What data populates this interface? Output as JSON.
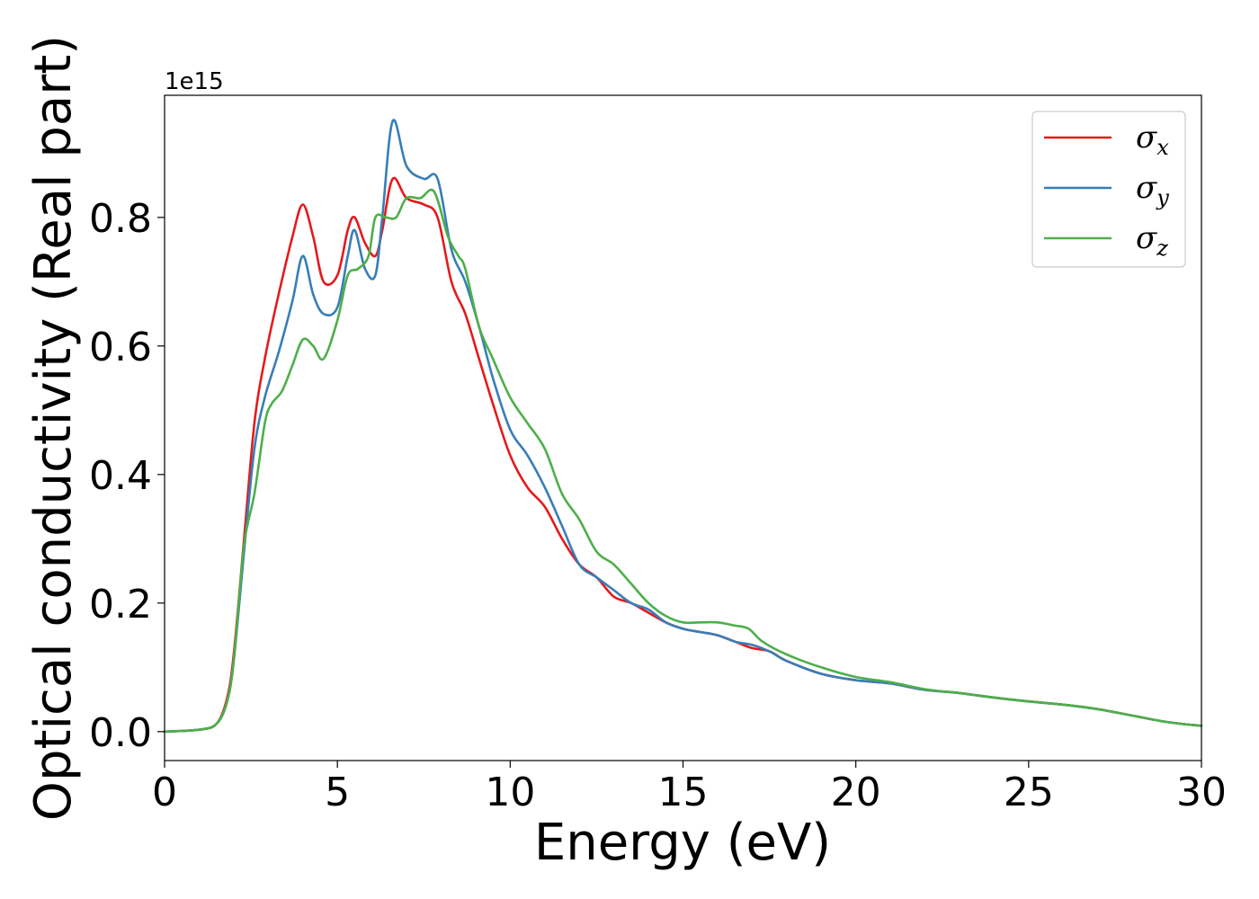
{
  "chart_data": {
    "type": "line",
    "xlabel": "Energy (eV)",
    "ylabel": "Optical conductivity (Real part)",
    "y_offset_text": "1e15",
    "xlim": [
      0,
      30
    ],
    "ylim": [
      -0.045,
      0.99
    ],
    "xticks": [
      0,
      5,
      10,
      15,
      20,
      25,
      30
    ],
    "xtick_labels": [
      "0",
      "5",
      "10",
      "15",
      "20",
      "25",
      "30"
    ],
    "yticks": [
      0.0,
      0.2,
      0.4,
      0.6,
      0.8
    ],
    "ytick_labels": [
      "0.0",
      "0.2",
      "0.4",
      "0.6",
      "0.8"
    ],
    "grid": false,
    "legend_position": "top-right",
    "series": [
      {
        "name": "σx",
        "symbol": "σ",
        "subscript": "x",
        "color": "#e41a1c",
        "x": [
          0,
          1,
          1.5,
          1.8,
          2.0,
          2.3,
          2.6,
          2.9,
          3.3,
          3.7,
          4.0,
          4.3,
          4.6,
          5.0,
          5.3,
          5.5,
          5.8,
          6.1,
          6.3,
          6.6,
          7.0,
          7.5,
          7.9,
          8.3,
          8.7,
          9.1,
          9.5,
          10.0,
          10.5,
          11.0,
          11.5,
          12.0,
          12.5,
          13.0,
          13.5,
          14.0,
          14.5,
          15.0,
          15.5,
          16.0,
          16.5,
          17.0,
          17.5,
          18.0,
          19.0,
          20.0,
          21.0,
          22.0,
          23.0,
          24.0,
          25.0,
          26.0,
          27.0,
          28.0,
          29.0,
          30.0
        ],
        "y": [
          0.0,
          0.003,
          0.012,
          0.05,
          0.12,
          0.3,
          0.48,
          0.58,
          0.68,
          0.77,
          0.82,
          0.77,
          0.7,
          0.71,
          0.78,
          0.8,
          0.76,
          0.74,
          0.78,
          0.86,
          0.83,
          0.82,
          0.8,
          0.7,
          0.65,
          0.58,
          0.51,
          0.43,
          0.38,
          0.35,
          0.3,
          0.26,
          0.24,
          0.21,
          0.2,
          0.185,
          0.17,
          0.16,
          0.155,
          0.15,
          0.14,
          0.13,
          0.125,
          0.11,
          0.09,
          0.08,
          0.075,
          0.065,
          0.06,
          0.053,
          0.047,
          0.042,
          0.035,
          0.025,
          0.015,
          0.009
        ]
      },
      {
        "name": "σy",
        "symbol": "σ",
        "subscript": "y",
        "color": "#377eb8",
        "x": [
          0,
          1,
          1.5,
          1.8,
          2.0,
          2.3,
          2.6,
          2.9,
          3.3,
          3.7,
          4.0,
          4.3,
          4.6,
          5.0,
          5.3,
          5.5,
          5.8,
          6.1,
          6.3,
          6.6,
          7.0,
          7.5,
          7.9,
          8.3,
          8.7,
          9.1,
          9.5,
          10.0,
          10.5,
          11.0,
          11.5,
          12.0,
          12.5,
          13.0,
          13.5,
          14.0,
          14.5,
          15.0,
          15.5,
          16.0,
          16.5,
          17.0,
          17.5,
          18.0,
          19.0,
          20.0,
          21.0,
          22.0,
          23.0,
          24.0,
          25.0,
          26.0,
          27.0,
          28.0,
          29.0,
          30.0
        ],
        "y": [
          0.0,
          0.003,
          0.012,
          0.045,
          0.11,
          0.28,
          0.44,
          0.52,
          0.59,
          0.67,
          0.74,
          0.68,
          0.65,
          0.66,
          0.74,
          0.78,
          0.72,
          0.71,
          0.8,
          0.95,
          0.88,
          0.86,
          0.86,
          0.75,
          0.7,
          0.63,
          0.55,
          0.47,
          0.43,
          0.38,
          0.32,
          0.26,
          0.24,
          0.22,
          0.2,
          0.19,
          0.17,
          0.16,
          0.155,
          0.15,
          0.14,
          0.135,
          0.125,
          0.11,
          0.09,
          0.08,
          0.075,
          0.065,
          0.06,
          0.053,
          0.047,
          0.042,
          0.035,
          0.025,
          0.015,
          0.009
        ]
      },
      {
        "name": "σz",
        "symbol": "σ",
        "subscript": "z",
        "color": "#4daf4a",
        "x": [
          0,
          1,
          1.5,
          1.8,
          2.0,
          2.3,
          2.6,
          2.9,
          3.1,
          3.4,
          3.7,
          4.0,
          4.3,
          4.6,
          5.0,
          5.3,
          5.6,
          5.9,
          6.1,
          6.4,
          6.7,
          7.0,
          7.4,
          7.8,
          8.2,
          8.5,
          8.7,
          9.1,
          9.5,
          10.0,
          10.5,
          11.0,
          11.5,
          12.0,
          12.5,
          13.0,
          13.5,
          14.0,
          14.5,
          15.0,
          15.5,
          16.0,
          16.5,
          16.9,
          17.3,
          18.0,
          19.0,
          20.0,
          21.0,
          22.0,
          23.0,
          24.0,
          25.0,
          26.0,
          27.0,
          28.0,
          29.0,
          30.0
        ],
        "y": [
          0.0,
          0.003,
          0.012,
          0.045,
          0.11,
          0.29,
          0.37,
          0.48,
          0.51,
          0.53,
          0.57,
          0.61,
          0.6,
          0.58,
          0.64,
          0.71,
          0.72,
          0.74,
          0.8,
          0.8,
          0.8,
          0.83,
          0.83,
          0.84,
          0.77,
          0.74,
          0.72,
          0.63,
          0.58,
          0.52,
          0.48,
          0.44,
          0.37,
          0.33,
          0.28,
          0.26,
          0.23,
          0.2,
          0.18,
          0.17,
          0.17,
          0.17,
          0.165,
          0.16,
          0.14,
          0.12,
          0.1,
          0.085,
          0.077,
          0.066,
          0.06,
          0.053,
          0.047,
          0.042,
          0.035,
          0.025,
          0.015,
          0.009
        ]
      }
    ]
  }
}
